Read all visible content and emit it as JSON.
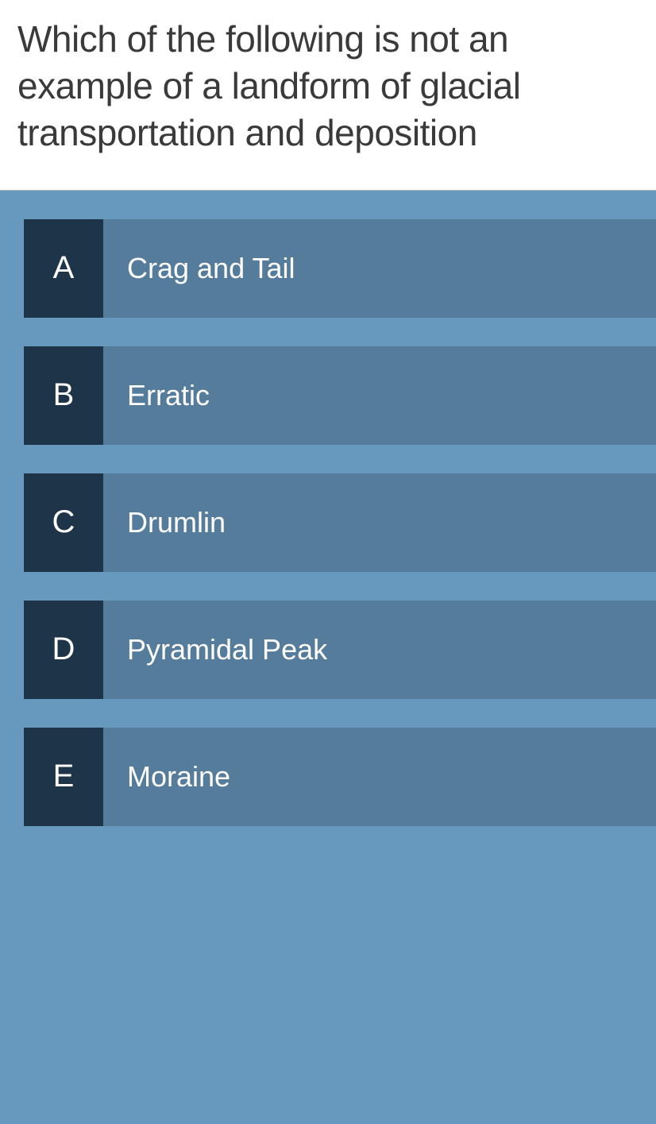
{
  "question": {
    "text": "Which of the following is not an example of a landform of glacial transportation and deposition",
    "text_color": "#3a3a3a",
    "fontsize": 46,
    "background": "#ffffff"
  },
  "answers_area": {
    "background": "#6699bd",
    "border_top": "#b8b8b8"
  },
  "option_style": {
    "letter_background": "#1e3449",
    "letter_color": "#ffffff",
    "letter_fontsize": 40,
    "text_background": "#557c9b",
    "text_color": "#ffffff",
    "text_fontsize": 36,
    "height": 124
  },
  "options": [
    {
      "letter": "A",
      "text": "Crag and Tail"
    },
    {
      "letter": "B",
      "text": "Erratic"
    },
    {
      "letter": "C",
      "text": "Drumlin"
    },
    {
      "letter": "D",
      "text": "Pyramidal Peak"
    },
    {
      "letter": "E",
      "text": "Moraine"
    }
  ]
}
